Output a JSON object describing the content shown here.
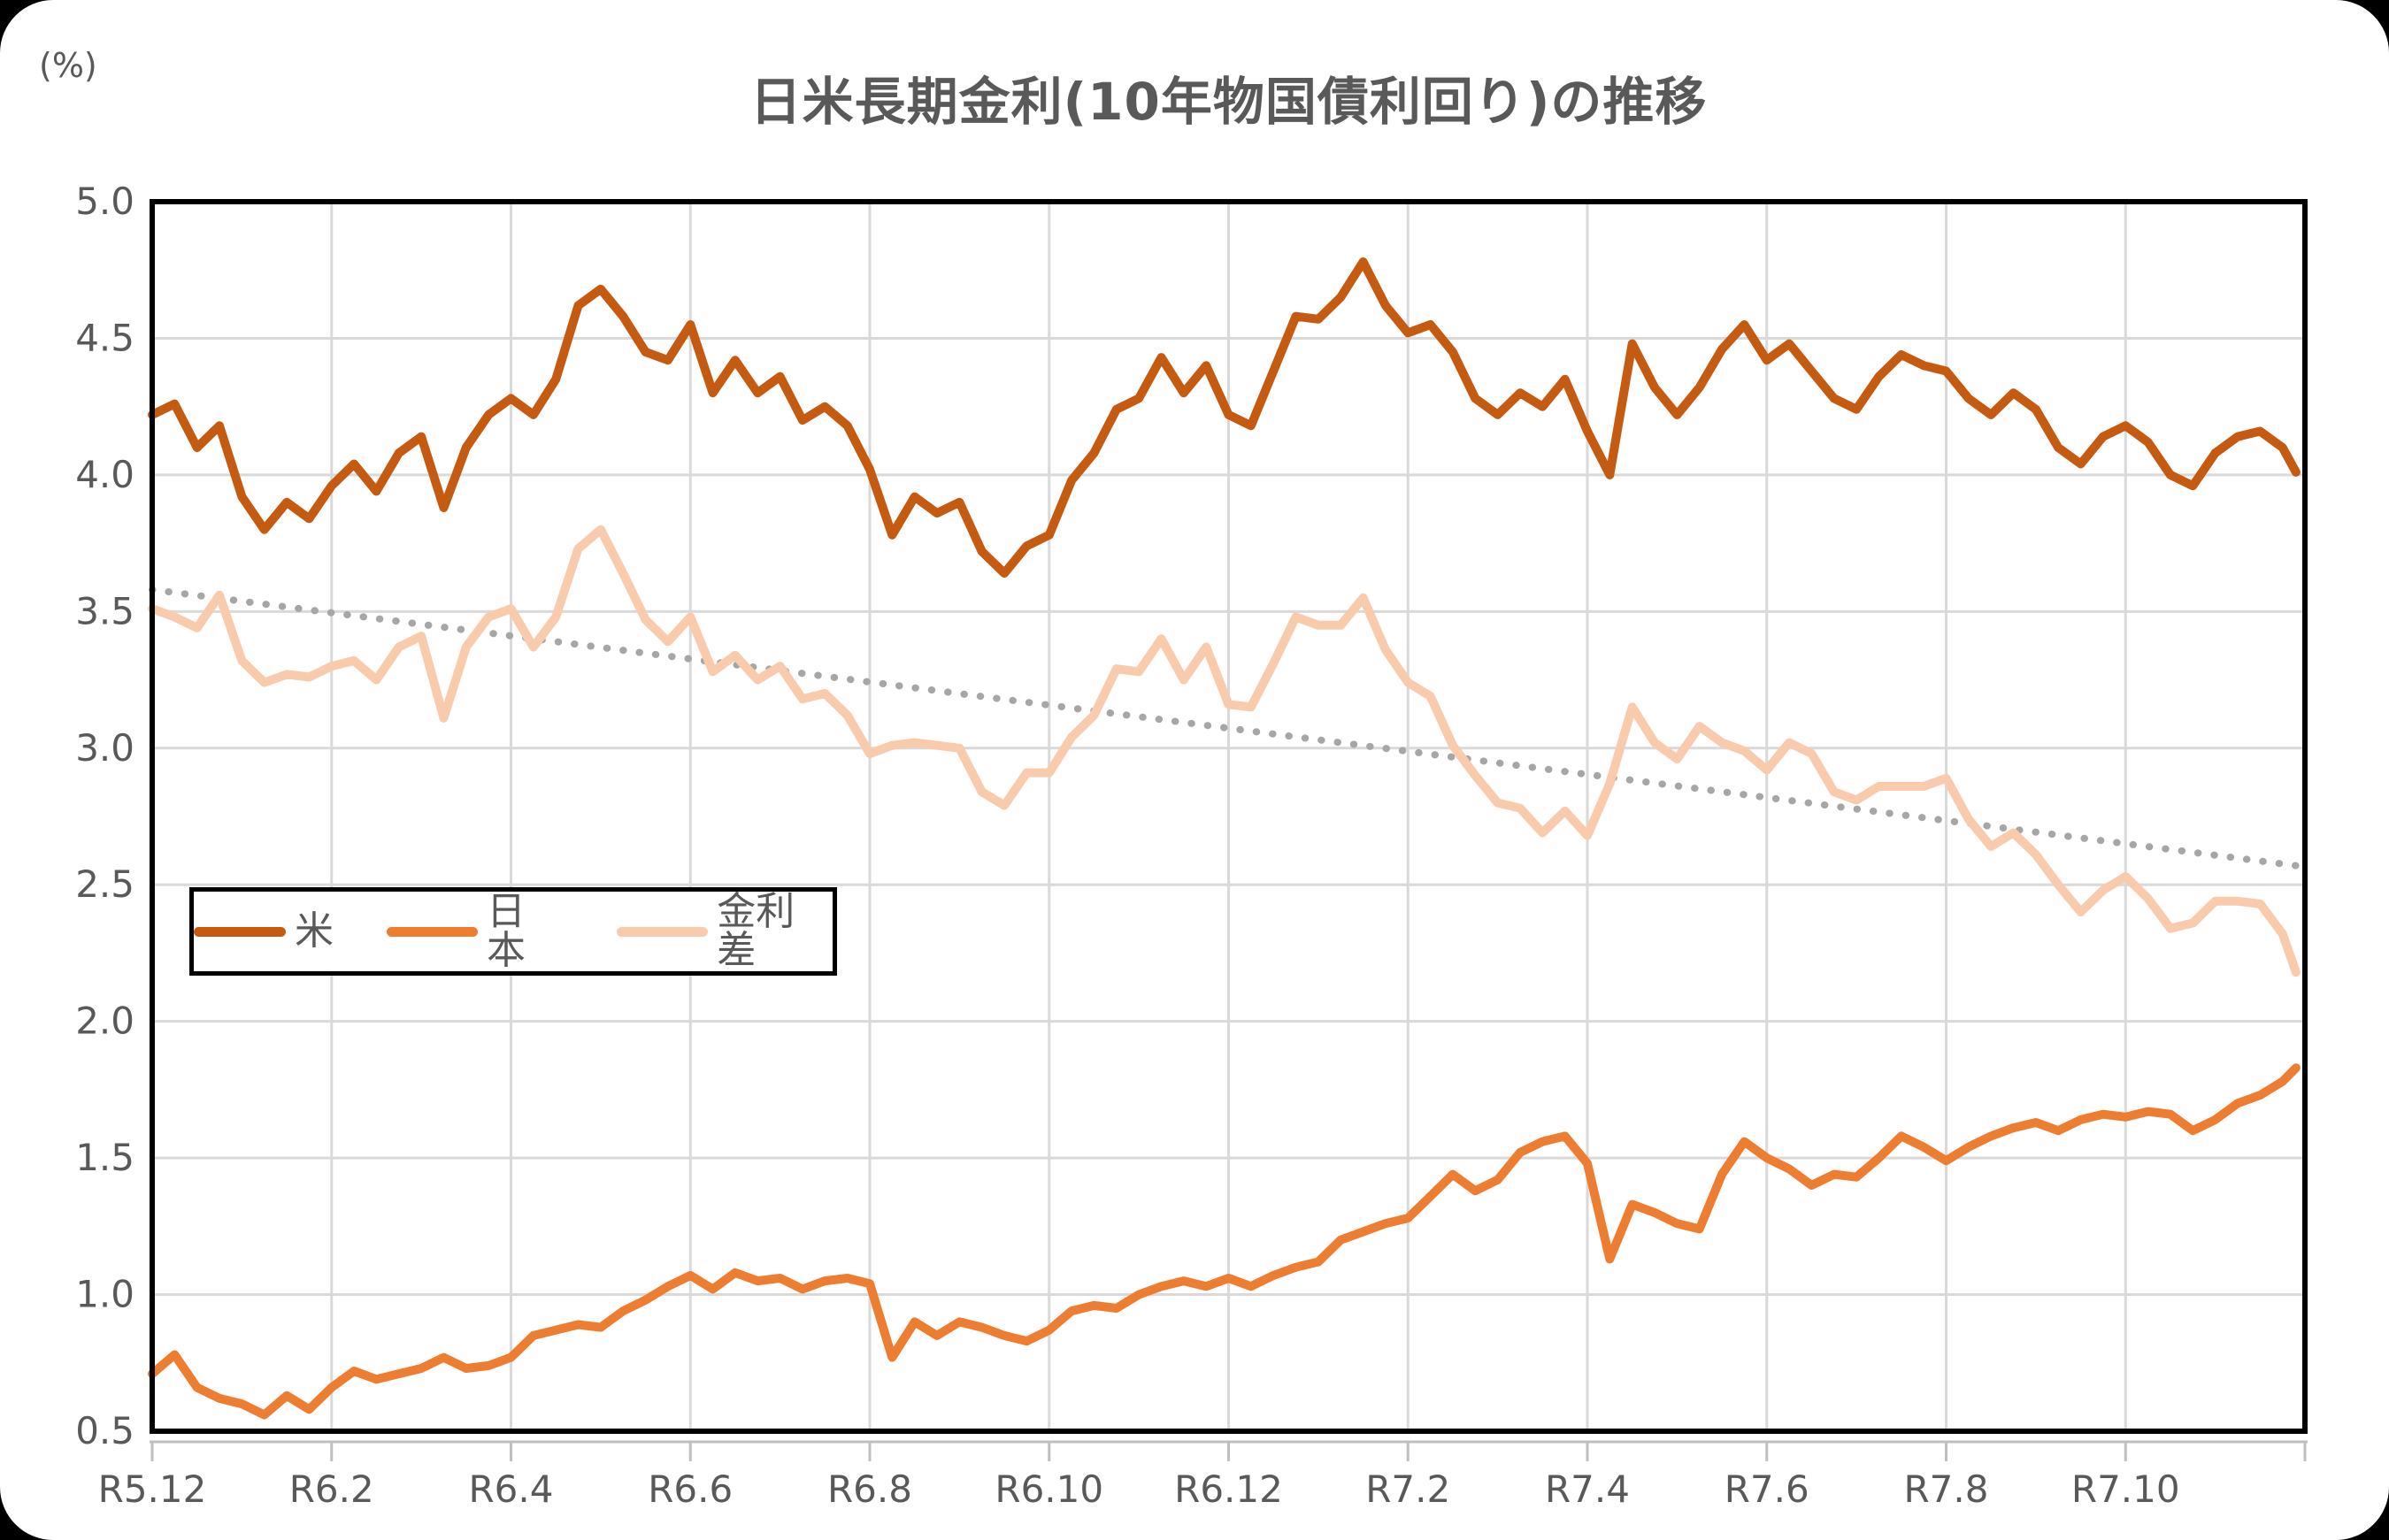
{
  "page": {
    "background": "#000000",
    "card_background": "#ffffff"
  },
  "chart_data": {
    "type": "line",
    "title": "日米長期金利(10年物国債利回り)の推移",
    "unit_label": "(%)",
    "grid": true,
    "grid_color": "#D9D9D9",
    "plot_border_color": "#000000",
    "axis_text_color": "#595959",
    "legend_position": "inside-middle-left",
    "y_axis": {
      "min": 0.5,
      "max": 5.0,
      "tick_values": [
        5.0,
        4.5,
        4.0,
        3.5,
        3.0,
        2.5,
        2.0,
        1.5,
        1.0,
        0.5
      ],
      "tick_labels": [
        "5.0",
        "4.5",
        "4.0",
        "3.5",
        "3.0",
        "2.5",
        "2.0",
        "1.5",
        "1.0",
        "0.5"
      ]
    },
    "x_axis": {
      "max_months": 24,
      "tick_months": [
        0,
        2,
        4,
        6,
        8,
        10,
        12,
        14,
        16,
        18,
        20,
        22
      ],
      "tick_labels": [
        "R5.12",
        "R6.2",
        "R6.4",
        "R6.6",
        "R6.8",
        "R6.10",
        "R6.12",
        "R7.2",
        "R7.4",
        "R7.6",
        "R7.8",
        "R7.10"
      ]
    },
    "x_months": [
      0,
      0.25,
      0.5,
      0.75,
      1,
      1.25,
      1.5,
      1.75,
      2,
      2.25,
      2.5,
      2.75,
      3,
      3.25,
      3.5,
      3.75,
      4,
      4.25,
      4.5,
      4.75,
      5,
      5.25,
      5.5,
      5.75,
      6,
      6.25,
      6.5,
      6.75,
      7,
      7.25,
      7.5,
      7.75,
      8,
      8.25,
      8.5,
      8.75,
      9,
      9.25,
      9.5,
      9.75,
      10,
      10.25,
      10.5,
      10.75,
      11,
      11.25,
      11.5,
      11.75,
      12,
      12.25,
      12.5,
      12.75,
      13,
      13.25,
      13.5,
      13.75,
      14,
      14.25,
      14.5,
      14.75,
      15,
      15.25,
      15.5,
      15.75,
      16,
      16.25,
      16.5,
      16.75,
      17,
      17.25,
      17.5,
      17.75,
      18,
      18.25,
      18.5,
      18.75,
      19,
      19.25,
      19.5,
      19.75,
      20,
      20.25,
      20.5,
      20.75,
      21,
      21.25,
      21.5,
      21.75,
      22,
      22.25,
      22.5,
      22.75,
      23,
      23.25,
      23.5,
      23.75,
      23.9
    ],
    "series": [
      {
        "key": "us",
        "name": "米",
        "color": "#C55A11",
        "line_width": 10,
        "values": [
          4.22,
          4.26,
          4.1,
          4.18,
          3.92,
          3.8,
          3.9,
          3.84,
          3.96,
          4.04,
          3.94,
          4.08,
          4.14,
          3.88,
          4.1,
          4.22,
          4.28,
          4.22,
          4.35,
          4.62,
          4.68,
          4.58,
          4.45,
          4.42,
          4.55,
          4.3,
          4.42,
          4.3,
          4.36,
          4.2,
          4.25,
          4.18,
          4.02,
          3.78,
          3.92,
          3.86,
          3.9,
          3.72,
          3.64,
          3.74,
          3.78,
          3.98,
          4.08,
          4.24,
          4.28,
          4.43,
          4.3,
          4.4,
          4.22,
          4.18,
          4.38,
          4.58,
          4.57,
          4.65,
          4.78,
          4.62,
          4.52,
          4.55,
          4.45,
          4.28,
          4.22,
          4.3,
          4.25,
          4.35,
          4.16,
          4.0,
          4.48,
          4.32,
          4.22,
          4.32,
          4.46,
          4.55,
          4.42,
          4.48,
          4.38,
          4.28,
          4.24,
          4.36,
          4.44,
          4.4,
          4.38,
          4.28,
          4.22,
          4.3,
          4.24,
          4.1,
          4.04,
          4.14,
          4.18,
          4.12,
          4.0,
          3.96,
          4.08,
          4.14,
          4.16,
          4.1,
          4.01
        ]
      },
      {
        "key": "japan",
        "name": "日本",
        "color": "#ED7D31",
        "line_width": 10,
        "values": [
          0.71,
          0.78,
          0.66,
          0.62,
          0.6,
          0.56,
          0.63,
          0.58,
          0.66,
          0.72,
          0.69,
          0.71,
          0.73,
          0.77,
          0.73,
          0.74,
          0.77,
          0.85,
          0.87,
          0.89,
          0.88,
          0.94,
          0.98,
          1.03,
          1.07,
          1.02,
          1.08,
          1.05,
          1.06,
          1.02,
          1.05,
          1.06,
          1.04,
          0.77,
          0.9,
          0.85,
          0.9,
          0.88,
          0.85,
          0.83,
          0.87,
          0.94,
          0.96,
          0.95,
          1.0,
          1.03,
          1.05,
          1.03,
          1.06,
          1.03,
          1.07,
          1.1,
          1.12,
          1.2,
          1.23,
          1.26,
          1.28,
          1.36,
          1.44,
          1.38,
          1.42,
          1.52,
          1.56,
          1.58,
          1.48,
          1.13,
          1.33,
          1.3,
          1.26,
          1.24,
          1.44,
          1.56,
          1.5,
          1.46,
          1.4,
          1.44,
          1.43,
          1.5,
          1.58,
          1.54,
          1.49,
          1.54,
          1.58,
          1.61,
          1.63,
          1.6,
          1.64,
          1.66,
          1.65,
          1.67,
          1.66,
          1.6,
          1.64,
          1.7,
          1.73,
          1.78,
          1.83
        ]
      },
      {
        "key": "spread",
        "name": "金利差",
        "color": "#F8CBAD",
        "line_width": 10,
        "values": [
          3.51,
          3.48,
          3.44,
          3.56,
          3.32,
          3.24,
          3.27,
          3.26,
          3.3,
          3.32,
          3.25,
          3.37,
          3.41,
          3.11,
          3.37,
          3.48,
          3.51,
          3.37,
          3.48,
          3.73,
          3.8,
          3.64,
          3.47,
          3.39,
          3.48,
          3.28,
          3.34,
          3.25,
          3.3,
          3.18,
          3.2,
          3.12,
          2.98,
          3.01,
          3.02,
          3.01,
          3.0,
          2.84,
          2.79,
          2.91,
          2.91,
          3.04,
          3.12,
          3.29,
          3.28,
          3.4,
          3.25,
          3.37,
          3.16,
          3.15,
          3.31,
          3.48,
          3.45,
          3.45,
          3.55,
          3.36,
          3.24,
          3.19,
          3.01,
          2.9,
          2.8,
          2.78,
          2.69,
          2.77,
          2.68,
          2.87,
          3.15,
          3.02,
          2.96,
          3.08,
          3.02,
          2.99,
          2.92,
          3.02,
          2.98,
          2.84,
          2.81,
          2.86,
          2.86,
          2.86,
          2.89,
          2.74,
          2.64,
          2.69,
          2.61,
          2.5,
          2.4,
          2.48,
          2.53,
          2.45,
          2.34,
          2.36,
          2.44,
          2.44,
          2.43,
          2.32,
          2.18
        ]
      }
    ],
    "trendline": {
      "applies_to": "金利差",
      "style": "dotted",
      "color": "#A6A6A6",
      "start_month": 0,
      "start_value": 3.58,
      "end_month": 23.9,
      "end_value": 2.57
    }
  }
}
